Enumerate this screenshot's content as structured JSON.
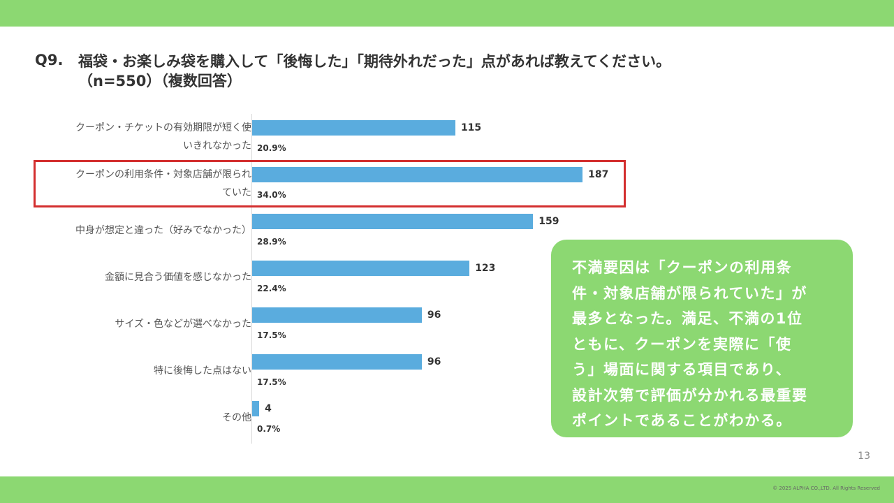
{
  "header": {
    "question_number": "Q9.",
    "question_text": "福袋・お楽しみ袋を購入して「後悔した」「期待外れだった」点があれば教えてください。",
    "question_sub": "（n=550）（複数回答）"
  },
  "chart_data": {
    "type": "bar",
    "orientation": "horizontal",
    "categories": [
      [
        "クーポン・チケットの有効期限が短く使",
        "いきれなかった"
      ],
      [
        "クーポンの利用条件・対象店舗が限られ",
        "ていた"
      ],
      [
        "中身が想定と違った（好みでなかった）"
      ],
      [
        "金額に見合う価値を感じなかった"
      ],
      [
        "サイズ・色などが選べなかった"
      ],
      [
        "特に後悔した点はない"
      ],
      [
        "その他"
      ]
    ],
    "values": [
      115,
      187,
      159,
      123,
      96,
      96,
      4
    ],
    "percent_labels": [
      "20.9%",
      "34.0%",
      "28.9%",
      "22.4%",
      "17.5%",
      "17.5%",
      "0.7%"
    ],
    "highlighted_index": 1,
    "bar_color": "#5aacde",
    "highlight_color": "#d32f2f",
    "grid": false
  },
  "callout": {
    "lines": [
      "不満要因は「クーポンの利用条",
      "件・対象店舗が限られていた」が",
      "最多となった。満足、不満の1位",
      "ともに、クーポンを実際に「使",
      "う」場面に関する項目であり、",
      "設計次第で評価が分かれる最重要",
      "ポイントであることがわかる。"
    ],
    "background_color": "#8cd872"
  },
  "footer": {
    "page_number": "13",
    "copyright": "© 2025 ALPHA CO.,LTD. All Rights Reserved"
  },
  "theme": {
    "band_color": "#8cd872"
  }
}
